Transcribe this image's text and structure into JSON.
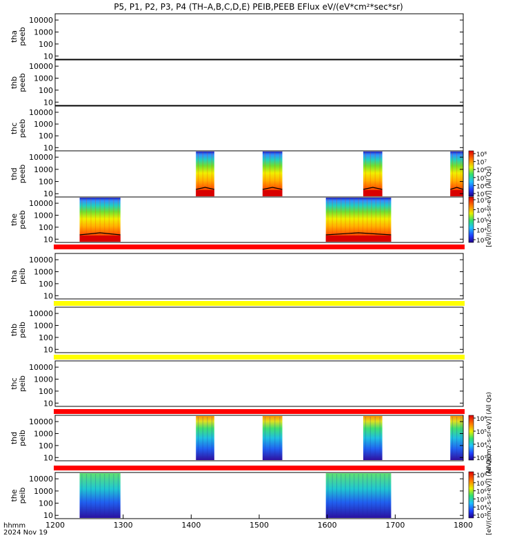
{
  "title": "P5, P1, P2, P3, P4 (TH–A,B,C,D,E) PEIB,PEEB EFlux eV/(eV*cm²*sec*sr)",
  "x_axis": {
    "label_line1": "hhmm",
    "label_line2": "2024 Nov 19"
  },
  "colorbars": [
    {
      "label": "[eV/(cm2-s-sr-eV)] (All Qs)",
      "ticks": [
        "10⁸",
        "10⁷",
        "10⁶",
        "10⁵",
        "10⁴",
        "10³"
      ]
    },
    {
      "label": "[eV/(cm2-s-sr-eV)] (All Qs)",
      "ticks": [
        "10⁷",
        "10⁶",
        "10⁵",
        "10⁴",
        "10³"
      ]
    },
    {
      "label": "[eV/(cm2-s-sr-eV)] (All Qs)",
      "ticks": [
        "10⁶",
        "10⁵",
        "10⁴",
        "10³"
      ]
    },
    {
      "label": "[eV/(cm2-s-sr-eV)] (All Qs)",
      "ticks": [
        "10⁸",
        "10⁷",
        "10⁶",
        "10⁵",
        "10⁴",
        "10³"
      ]
    }
  ],
  "colors": {
    "red_bar": "#ff0000",
    "yellow_bar": "#ffff00"
  },
  "chart_data": {
    "type": "heatmap",
    "x_ticks": [
      "1200",
      "1300",
      "1400",
      "1500",
      "1600",
      "1700",
      "1800"
    ],
    "xlim": [
      1200,
      1800
    ],
    "y_scale": "log",
    "y_ticks": [
      "10",
      "100",
      "1000",
      "10000"
    ],
    "panels": [
      {
        "label1": "tha",
        "label2": "peeb",
        "kind": "electron",
        "intervals": []
      },
      {
        "label1": "thb",
        "label2": "peeb",
        "kind": "electron",
        "intervals": []
      },
      {
        "label1": "thc",
        "label2": "peeb",
        "kind": "electron",
        "intervals": []
      },
      {
        "label1": "thd",
        "label2": "peeb",
        "kind": "electron",
        "intervals": [
          [
            1407,
            1434
          ],
          [
            1505,
            1534
          ],
          [
            1653,
            1681
          ],
          [
            1781,
            1800
          ]
        ]
      },
      {
        "label1": "the",
        "label2": "peeb",
        "kind": "electron",
        "intervals": [
          [
            1236,
            1296
          ],
          [
            1598,
            1694
          ]
        ]
      },
      {
        "label1": "tha",
        "label2": "peib",
        "kind": "ion",
        "intervals": []
      },
      {
        "label1": "thb",
        "label2": "peib",
        "kind": "ion",
        "intervals": []
      },
      {
        "label1": "thc",
        "label2": "peib",
        "kind": "ion",
        "intervals": []
      },
      {
        "label1": "thd",
        "label2": "peib",
        "kind": "ion",
        "intervals": [
          [
            1407,
            1434
          ],
          [
            1505,
            1534
          ],
          [
            1653,
            1681
          ],
          [
            1781,
            1800
          ]
        ]
      },
      {
        "label1": "the",
        "label2": "peib",
        "kind": "ion",
        "intervals": [
          [
            1236,
            1296
          ],
          [
            1598,
            1694
          ]
        ]
      }
    ],
    "status_bars": [
      "red",
      "yellow",
      "yellow",
      "red",
      "red"
    ]
  }
}
